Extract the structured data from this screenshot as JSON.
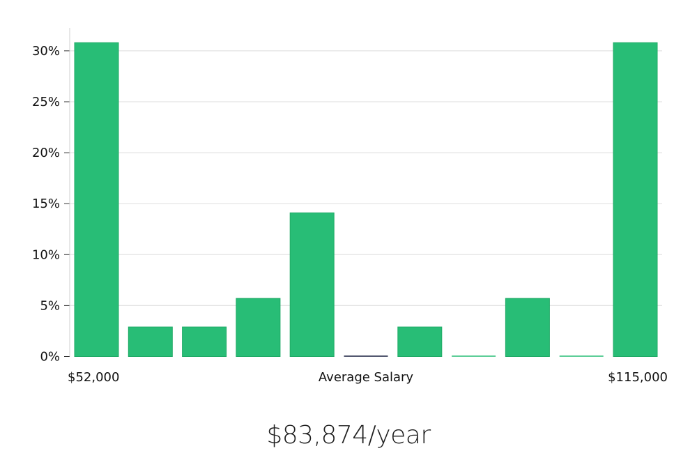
{
  "chart_data": {
    "type": "bar",
    "title": "",
    "xlabel": "Average Salary",
    "ylabel": "",
    "x_min_label": "$52,000",
    "x_max_label": "$115,000",
    "ylim": [
      0,
      32
    ],
    "yticks": [
      0,
      5,
      10,
      15,
      20,
      25,
      30
    ],
    "ytick_labels": [
      "0%",
      "5%",
      "10%",
      "15%",
      "20%",
      "25%",
      "30%"
    ],
    "grid": true,
    "bins": 11,
    "values": [
      30.8,
      2.9,
      2.9,
      5.7,
      14.1,
      0,
      2.9,
      0,
      5.7,
      0,
      30.8
    ],
    "colors": {
      "bar": "#28bd76",
      "bar_stroke": "#1faa66",
      "zero_marker": [
        "#28bd76",
        "#28bd76",
        "#28bd76",
        "#28bd76",
        "#28bd76",
        "#1a2140",
        "#28bd76",
        "#28bd76",
        "#28bd76",
        "#28bd76",
        "#28bd76"
      ],
      "grid": "#e3e3e3",
      "axis": "#cfcfcf",
      "text": "#111111"
    }
  },
  "summary": {
    "average_salary": "$83,874/year"
  }
}
